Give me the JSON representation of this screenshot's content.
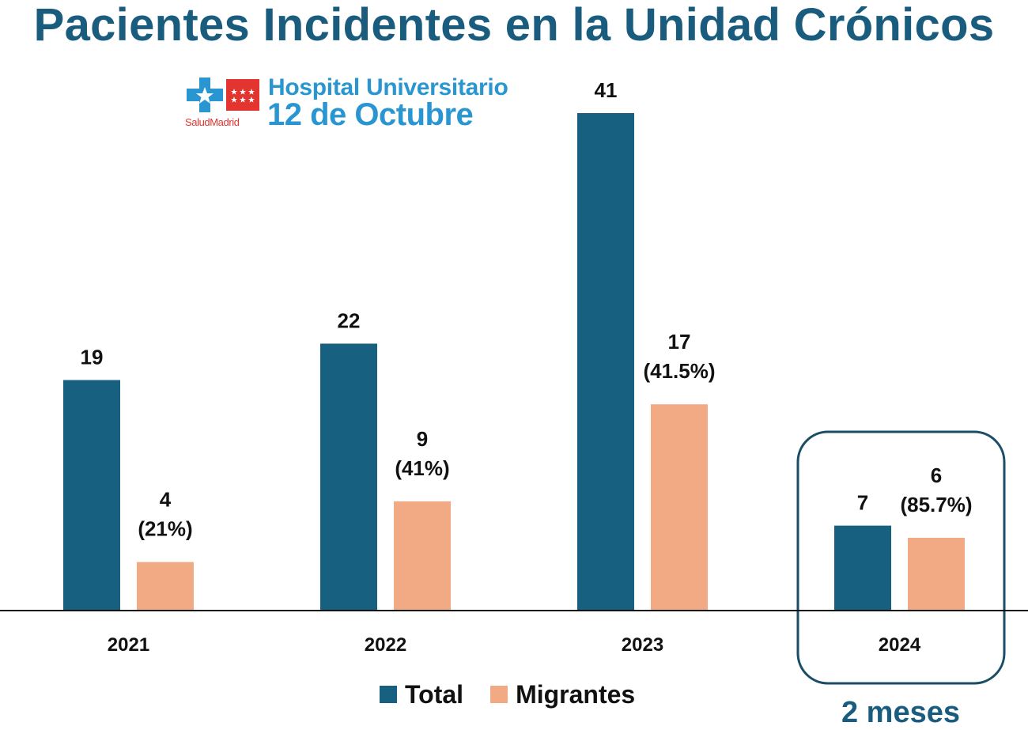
{
  "title": "Pacientes Incidentes en la Unidad Crónicos",
  "logo": {
    "line1": "Hospital Universitario",
    "line2": "12 de Octubre",
    "salud_a": "Salud",
    "salud_b": "Madrid"
  },
  "chart_data": {
    "type": "bar",
    "categories": [
      "2021",
      "2022",
      "2023",
      "2024"
    ],
    "series": [
      {
        "name": "Total",
        "color": "#17607f",
        "values": [
          19,
          22,
          41,
          7
        ],
        "labels": [
          "19",
          "22",
          "41",
          "7"
        ],
        "sublabels": [
          "",
          "",
          "",
          ""
        ]
      },
      {
        "name": "Migrantes",
        "color": "#f2aa85",
        "values": [
          4,
          9,
          17,
          6
        ],
        "labels": [
          "4",
          "9",
          "17",
          "6"
        ],
        "sublabels": [
          "(21%)",
          "(41%)",
          "(41.5%)",
          "(85.7%)"
        ]
      }
    ],
    "ylim": [
      0,
      41
    ],
    "grid": false,
    "legend_position": "bottom",
    "highlight_category": "2024",
    "highlight_note": "2 meses"
  }
}
